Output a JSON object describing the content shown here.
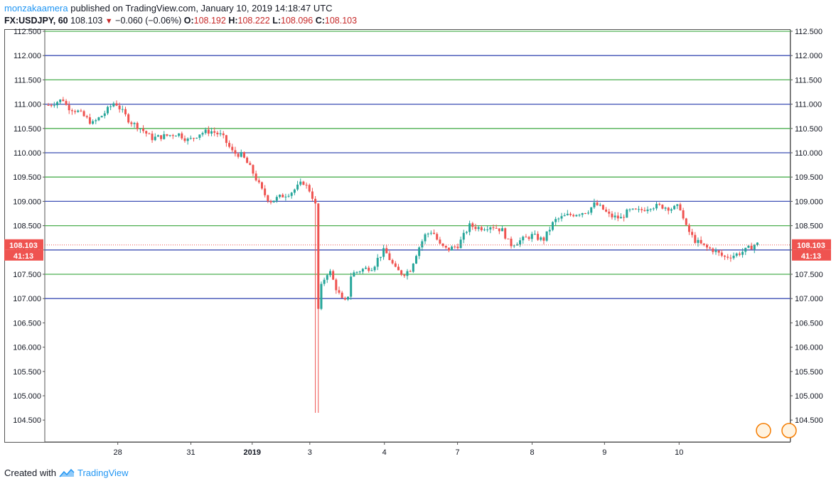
{
  "header": {
    "author": "monzakaamera",
    "published_text": "published on TradingView.com, January 10, 2019 14:18:47 UTC",
    "symbol": "FX:USDJPY, 60",
    "last": "108.103",
    "change": "−0.060 (−0.06%)",
    "o_label": "O:",
    "o_value": "108.192",
    "h_label": "H:",
    "h_value": "108.222",
    "l_label": "L:",
    "l_value": "108.096",
    "c_label": "C:",
    "c_value": "108.103"
  },
  "footer": {
    "created_with": "Created with",
    "brand": "TradingView"
  },
  "colors": {
    "up": "#26a69a",
    "down": "#ef5350",
    "green_line": "#4caf50",
    "blue_line": "#3f51b5",
    "price_label": "#ef5350"
  },
  "chart_data": {
    "type": "candlestick",
    "y_ticks": [
      "104.500",
      "105.000",
      "105.500",
      "106.000",
      "106.500",
      "107.000",
      "107.500",
      "108.000",
      "108.500",
      "109.000",
      "109.500",
      "110.000",
      "110.500",
      "111.000",
      "111.500",
      "112.000",
      "112.500"
    ],
    "ylim": [
      104.0,
      112.5
    ],
    "x_ticks": [
      {
        "label": "28",
        "bold": false,
        "t": 0.094
      },
      {
        "label": "31",
        "bold": false,
        "t": 0.193
      },
      {
        "label": "2019",
        "bold": true,
        "t": 0.276
      },
      {
        "label": "3",
        "bold": false,
        "t": 0.354
      },
      {
        "label": "4",
        "bold": false,
        "t": 0.455
      },
      {
        "label": "7",
        "bold": false,
        "t": 0.554
      },
      {
        "label": "8",
        "bold": false,
        "t": 0.655
      },
      {
        "label": "9",
        "bold": false,
        "t": 0.753
      },
      {
        "label": "10",
        "bold": false,
        "t": 0.854
      }
    ],
    "horizontal_levels": [
      {
        "price": 112.5,
        "color": "green"
      },
      {
        "price": 112.0,
        "color": "blue"
      },
      {
        "price": 111.5,
        "color": "green"
      },
      {
        "price": 111.0,
        "color": "blue"
      },
      {
        "price": 110.5,
        "color": "green"
      },
      {
        "price": 110.0,
        "color": "blue"
      },
      {
        "price": 109.5,
        "color": "green"
      },
      {
        "price": 109.0,
        "color": "blue"
      },
      {
        "price": 108.5,
        "color": "green"
      },
      {
        "price": 108.0,
        "color": "blue"
      },
      {
        "price": 107.5,
        "color": "green"
      },
      {
        "price": 107.0,
        "color": "blue"
      }
    ],
    "last_price": 108.103,
    "last_price_label": "108.103",
    "countdown_label": "41:13",
    "keypoints": [
      [
        0.0,
        110.98
      ],
      [
        0.02,
        111.1
      ],
      [
        0.025,
        110.95
      ],
      [
        0.04,
        110.85
      ],
      [
        0.06,
        110.6
      ],
      [
        0.075,
        110.8
      ],
      [
        0.09,
        111.05
      ],
      [
        0.11,
        110.65
      ],
      [
        0.125,
        110.5
      ],
      [
        0.14,
        110.3
      ],
      [
        0.16,
        110.35
      ],
      [
        0.175,
        110.4
      ],
      [
        0.19,
        110.25
      ],
      [
        0.205,
        110.4
      ],
      [
        0.22,
        110.45
      ],
      [
        0.235,
        110.35
      ],
      [
        0.25,
        110.0
      ],
      [
        0.262,
        109.95
      ],
      [
        0.275,
        109.65
      ],
      [
        0.29,
        109.2
      ],
      [
        0.3,
        109.0
      ],
      [
        0.315,
        109.1
      ],
      [
        0.33,
        109.2
      ],
      [
        0.345,
        109.4
      ],
      [
        0.355,
        109.2
      ],
      [
        0.362,
        108.9
      ],
      [
        0.364,
        106.6
      ],
      [
        0.37,
        107.3
      ],
      [
        0.38,
        107.6
      ],
      [
        0.39,
        107.2
      ],
      [
        0.4,
        106.9
      ],
      [
        0.405,
        107.0
      ],
      [
        0.41,
        107.5
      ],
      [
        0.425,
        107.6
      ],
      [
        0.44,
        107.65
      ],
      [
        0.445,
        107.8
      ],
      [
        0.455,
        108.0
      ],
      [
        0.47,
        107.6
      ],
      [
        0.48,
        107.5
      ],
      [
        0.49,
        107.6
      ],
      [
        0.5,
        108.0
      ],
      [
        0.51,
        108.3
      ],
      [
        0.52,
        108.4
      ],
      [
        0.53,
        108.1
      ],
      [
        0.54,
        108.0
      ],
      [
        0.555,
        108.1
      ],
      [
        0.57,
        108.5
      ],
      [
        0.585,
        108.45
      ],
      [
        0.6,
        108.5
      ],
      [
        0.615,
        108.4
      ],
      [
        0.625,
        108.1
      ],
      [
        0.64,
        108.2
      ],
      [
        0.655,
        108.3
      ],
      [
        0.67,
        108.2
      ],
      [
        0.685,
        108.6
      ],
      [
        0.7,
        108.7
      ],
      [
        0.715,
        108.75
      ],
      [
        0.73,
        108.8
      ],
      [
        0.74,
        108.95
      ],
      [
        0.75,
        108.85
      ],
      [
        0.76,
        108.7
      ],
      [
        0.775,
        108.65
      ],
      [
        0.785,
        108.8
      ],
      [
        0.8,
        108.8
      ],
      [
        0.815,
        108.9
      ],
      [
        0.83,
        108.9
      ],
      [
        0.845,
        108.85
      ],
      [
        0.855,
        108.9
      ],
      [
        0.862,
        108.5
      ],
      [
        0.875,
        108.2
      ],
      [
        0.89,
        108.05
      ],
      [
        0.9,
        108.0
      ],
      [
        0.915,
        107.85
      ],
      [
        0.93,
        107.9
      ],
      [
        0.945,
        108.0
      ],
      [
        0.955,
        108.1
      ],
      [
        0.96,
        108.12
      ]
    ],
    "spike_low": {
      "t": 0.364,
      "price": 104.65
    }
  }
}
